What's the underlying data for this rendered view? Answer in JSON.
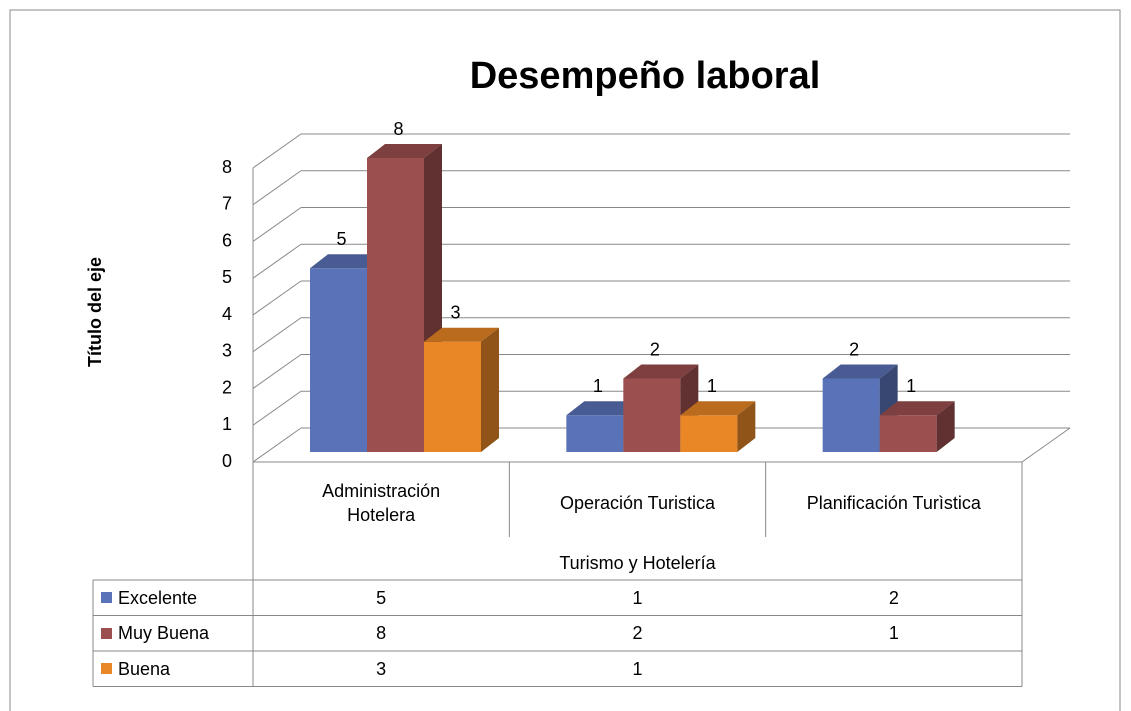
{
  "chart_data": {
    "type": "bar3d",
    "title": "Desempeño laboral",
    "y_label": "Título del eje",
    "x_label": "Turismo y Hotelería",
    "categories": [
      "Administración Hotelera",
      "Operación Turistica",
      "Planificación Turìstica"
    ],
    "series": [
      {
        "name": "Excelente",
        "color": "#5a73b8",
        "values": [
          5,
          1,
          2
        ]
      },
      {
        "name": "Muy Buena",
        "color": "#9c4f4f",
        "values": [
          8,
          2,
          1
        ]
      },
      {
        "name": "Buena",
        "color": "#e98626",
        "values": [
          3,
          1,
          null
        ]
      }
    ],
    "ylim": [
      0,
      8
    ],
    "yticks": [
      0,
      1,
      2,
      3,
      4,
      5,
      6,
      7,
      8
    ],
    "grid": true
  }
}
